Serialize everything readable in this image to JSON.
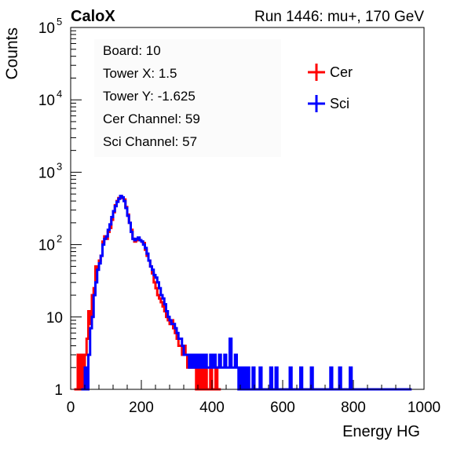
{
  "header": {
    "left_title": "CaloX",
    "right_title": "Run 1446: mu+, 170 GeV"
  },
  "info_box": {
    "lines": [
      "Board: 10",
      "Tower X: 1.5",
      "Tower Y: -1.625",
      "Cer Channel: 59",
      "Sci Channel: 57"
    ]
  },
  "legend": {
    "items": [
      {
        "label": "Cer",
        "color": "#ff0000"
      },
      {
        "label": "Sci",
        "color": "#0000ff"
      }
    ]
  },
  "chart_data": {
    "type": "line",
    "style": "step histogram",
    "xlabel": "Energy HG",
    "ylabel": "Counts",
    "xlim": [
      0,
      1000
    ],
    "ylim": [
      1,
      100000
    ],
    "yscale": "log",
    "x_ticks": [
      0,
      200,
      400,
      600,
      800,
      1000
    ],
    "y_ticks": [
      {
        "value": 1,
        "label": "1"
      },
      {
        "value": 10,
        "label": "10"
      },
      {
        "value": 100,
        "label": "10",
        "exp": "2"
      },
      {
        "value": 1000,
        "label": "10",
        "exp": "3"
      },
      {
        "value": 10000,
        "label": "10",
        "exp": "4"
      },
      {
        "value": 100000,
        "label": "10",
        "exp": "5"
      }
    ],
    "legend_position": "top-right",
    "grid": false,
    "series": [
      {
        "name": "Cer",
        "color": "#ff0000",
        "points": [
          [
            10,
            1
          ],
          [
            20,
            3
          ],
          [
            25,
            1
          ],
          [
            30,
            3
          ],
          [
            35,
            1
          ],
          [
            40,
            3
          ],
          [
            45,
            5
          ],
          [
            50,
            12
          ],
          [
            55,
            8
          ],
          [
            60,
            20
          ],
          [
            65,
            25
          ],
          [
            70,
            50
          ],
          [
            75,
            45
          ],
          [
            80,
            60
          ],
          [
            85,
            70
          ],
          [
            90,
            110
          ],
          [
            95,
            130
          ],
          [
            100,
            120
          ],
          [
            105,
            150
          ],
          [
            110,
            170
          ],
          [
            115,
            220
          ],
          [
            120,
            280
          ],
          [
            125,
            350
          ],
          [
            130,
            400
          ],
          [
            135,
            440
          ],
          [
            140,
            460
          ],
          [
            145,
            440
          ],
          [
            150,
            420
          ],
          [
            155,
            330
          ],
          [
            160,
            260
          ],
          [
            165,
            200
          ],
          [
            170,
            160
          ],
          [
            175,
            120
          ],
          [
            180,
            110
          ],
          [
            185,
            115
          ],
          [
            190,
            120
          ],
          [
            195,
            115
          ],
          [
            200,
            110
          ],
          [
            205,
            105
          ],
          [
            210,
            85
          ],
          [
            215,
            70
          ],
          [
            220,
            60
          ],
          [
            225,
            50
          ],
          [
            230,
            40
          ],
          [
            235,
            30
          ],
          [
            240,
            25
          ],
          [
            245,
            20
          ],
          [
            250,
            18
          ],
          [
            255,
            16
          ],
          [
            260,
            14
          ],
          [
            265,
            12
          ],
          [
            270,
            10
          ],
          [
            275,
            9
          ],
          [
            280,
            8
          ],
          [
            285,
            9
          ],
          [
            290,
            7
          ],
          [
            295,
            6
          ],
          [
            300,
            5
          ],
          [
            305,
            4
          ],
          [
            310,
            4
          ],
          [
            315,
            3
          ],
          [
            320,
            4
          ],
          [
            325,
            3
          ],
          [
            330,
            2
          ],
          [
            335,
            3
          ],
          [
            340,
            2
          ],
          [
            345,
            3
          ],
          [
            350,
            2
          ],
          [
            355,
            1
          ],
          [
            360,
            2
          ],
          [
            365,
            1
          ],
          [
            370,
            2
          ],
          [
            375,
            1
          ],
          [
            380,
            2
          ],
          [
            385,
            1
          ],
          [
            390,
            1
          ],
          [
            395,
            2
          ],
          [
            400,
            1
          ],
          [
            405,
            1
          ],
          [
            410,
            2
          ],
          [
            415,
            1
          ],
          [
            420,
            1
          ]
        ]
      },
      {
        "name": "Sci",
        "color": "#0000ff",
        "points": [
          [
            30,
            1
          ],
          [
            40,
            2
          ],
          [
            45,
            1
          ],
          [
            50,
            3
          ],
          [
            55,
            7
          ],
          [
            60,
            10
          ],
          [
            65,
            20
          ],
          [
            70,
            30
          ],
          [
            75,
            45
          ],
          [
            80,
            55
          ],
          [
            85,
            70
          ],
          [
            90,
            100
          ],
          [
            95,
            120
          ],
          [
            100,
            130
          ],
          [
            105,
            160
          ],
          [
            110,
            190
          ],
          [
            115,
            240
          ],
          [
            120,
            290
          ],
          [
            125,
            340
          ],
          [
            130,
            390
          ],
          [
            135,
            430
          ],
          [
            140,
            470
          ],
          [
            145,
            450
          ],
          [
            150,
            400
          ],
          [
            155,
            320
          ],
          [
            160,
            250
          ],
          [
            165,
            200
          ],
          [
            170,
            150
          ],
          [
            175,
            120
          ],
          [
            180,
            115
          ],
          [
            185,
            120
          ],
          [
            190,
            125
          ],
          [
            195,
            115
          ],
          [
            200,
            110
          ],
          [
            205,
            100
          ],
          [
            210,
            90
          ],
          [
            215,
            75
          ],
          [
            220,
            60
          ],
          [
            225,
            50
          ],
          [
            230,
            45
          ],
          [
            235,
            38
          ],
          [
            240,
            35
          ],
          [
            245,
            30
          ],
          [
            250,
            25
          ],
          [
            255,
            20
          ],
          [
            260,
            18
          ],
          [
            265,
            15
          ],
          [
            270,
            12
          ],
          [
            275,
            10
          ],
          [
            280,
            9
          ],
          [
            285,
            8
          ],
          [
            290,
            8
          ],
          [
            295,
            7
          ],
          [
            300,
            6
          ],
          [
            305,
            5
          ],
          [
            310,
            5
          ],
          [
            315,
            4
          ],
          [
            320,
            3
          ],
          [
            325,
            3
          ],
          [
            330,
            3
          ],
          [
            335,
            2
          ],
          [
            340,
            3
          ],
          [
            345,
            2
          ],
          [
            350,
            3
          ],
          [
            355,
            2
          ],
          [
            360,
            3
          ],
          [
            365,
            2
          ],
          [
            370,
            3
          ],
          [
            375,
            2
          ],
          [
            380,
            3
          ],
          [
            385,
            2
          ],
          [
            390,
            2
          ],
          [
            395,
            3
          ],
          [
            400,
            2
          ],
          [
            405,
            3
          ],
          [
            410,
            2
          ],
          [
            415,
            2
          ],
          [
            420,
            3
          ],
          [
            425,
            2
          ],
          [
            430,
            2
          ],
          [
            435,
            3
          ],
          [
            440,
            2
          ],
          [
            445,
            2
          ],
          [
            450,
            5
          ],
          [
            455,
            2
          ],
          [
            460,
            2
          ],
          [
            465,
            3
          ],
          [
            470,
            2
          ],
          [
            475,
            1
          ],
          [
            480,
            2
          ],
          [
            485,
            1
          ],
          [
            490,
            2
          ],
          [
            495,
            1
          ],
          [
            500,
            2
          ],
          [
            505,
            1
          ],
          [
            510,
            1
          ],
          [
            515,
            2
          ],
          [
            520,
            1
          ],
          [
            525,
            1
          ],
          [
            530,
            1
          ],
          [
            535,
            2
          ],
          [
            540,
            1
          ],
          [
            545,
            1
          ],
          [
            550,
            1
          ],
          [
            560,
            1
          ],
          [
            565,
            2
          ],
          [
            570,
            1
          ],
          [
            575,
            1
          ],
          [
            580,
            2
          ],
          [
            585,
            1
          ],
          [
            590,
            1
          ],
          [
            600,
            1
          ],
          [
            610,
            1
          ],
          [
            620,
            2
          ],
          [
            625,
            1
          ],
          [
            640,
            1
          ],
          [
            650,
            2
          ],
          [
            655,
            1
          ],
          [
            660,
            1
          ],
          [
            670,
            1
          ],
          [
            680,
            2
          ],
          [
            685,
            1
          ],
          [
            690,
            1
          ],
          [
            700,
            1
          ],
          [
            710,
            1
          ],
          [
            720,
            1
          ],
          [
            730,
            1
          ],
          [
            735,
            2
          ],
          [
            740,
            1
          ],
          [
            750,
            1
          ],
          [
            760,
            2
          ],
          [
            765,
            1
          ],
          [
            770,
            1
          ],
          [
            780,
            1
          ],
          [
            790,
            2
          ],
          [
            795,
            1
          ],
          [
            800,
            1
          ],
          [
            810,
            1
          ],
          [
            815,
            1
          ],
          [
            830,
            1
          ],
          [
            840,
            1
          ],
          [
            850,
            1
          ],
          [
            860,
            1
          ],
          [
            870,
            1
          ],
          [
            880,
            1
          ],
          [
            895,
            1
          ],
          [
            900,
            1
          ],
          [
            910,
            1
          ],
          [
            920,
            1
          ],
          [
            935,
            1
          ],
          [
            950,
            1
          ],
          [
            960,
            1
          ]
        ]
      }
    ]
  }
}
